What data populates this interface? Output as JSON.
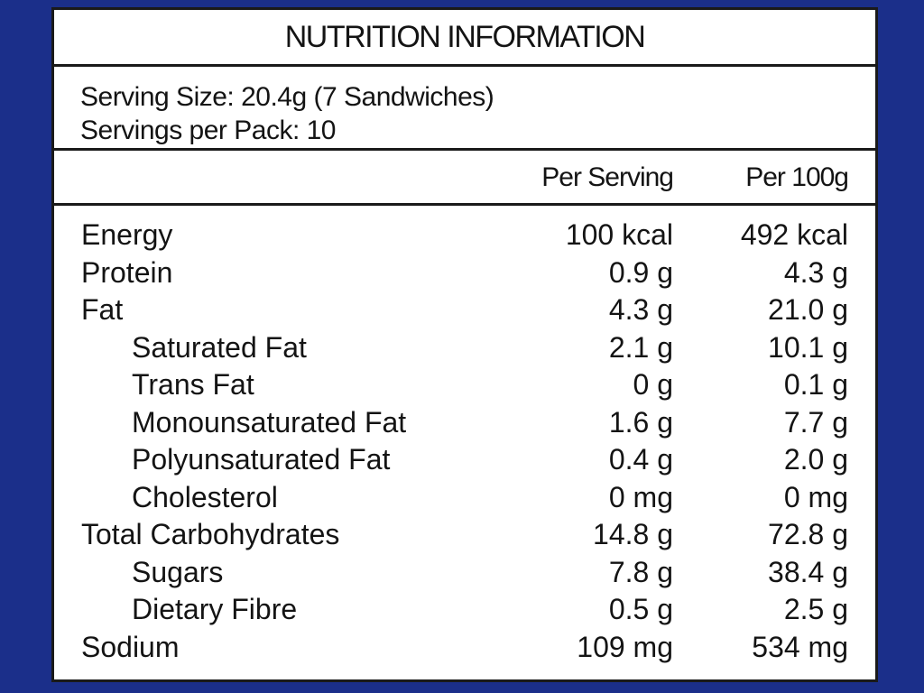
{
  "title": "NUTRITION INFORMATION",
  "serving_size": "Serving Size: 20.4g (7 Sandwiches)",
  "servings_per_pack": "Servings per Pack: 10",
  "columns": {
    "per_serving": "Per Serving",
    "per_100g": "Per 100g"
  },
  "nutrients": [
    {
      "name": "Energy",
      "per_serving": "100 kcal",
      "per_100g": "492 kcal"
    },
    {
      "name": "Protein",
      "per_serving": "0.9 g",
      "per_100g": "4.3 g"
    },
    {
      "name": "Fat",
      "per_serving": "4.3 g",
      "per_100g": "21.0 g"
    },
    {
      "name": "Saturated Fat",
      "per_serving": "2.1 g",
      "per_100g": "10.1 g"
    },
    {
      "name": "Trans Fat",
      "per_serving": "0 g",
      "per_100g": "0.1 g"
    },
    {
      "name": "Monounsaturated Fat",
      "per_serving": "1.6 g",
      "per_100g": "7.7 g"
    },
    {
      "name": "Polyunsaturated Fat",
      "per_serving": "0.4 g",
      "per_100g": "2.0 g"
    },
    {
      "name": "Cholesterol",
      "per_serving": "0 mg",
      "per_100g": "0 mg"
    },
    {
      "name": "Total Carbohydrates",
      "per_serving": "14.8 g",
      "per_100g": "72.8 g"
    },
    {
      "name": "Sugars",
      "per_serving": "7.8 g",
      "per_100g": "38.4 g"
    },
    {
      "name": "Dietary Fibre",
      "per_serving": "0.5 g",
      "per_100g": "2.5 g"
    },
    {
      "name": "Sodium",
      "per_serving": "109 mg",
      "per_100g": "534 mg"
    }
  ],
  "colors": {
    "border_blue": "#1b2f8a",
    "panel": "#ffffff",
    "text": "#141414"
  }
}
